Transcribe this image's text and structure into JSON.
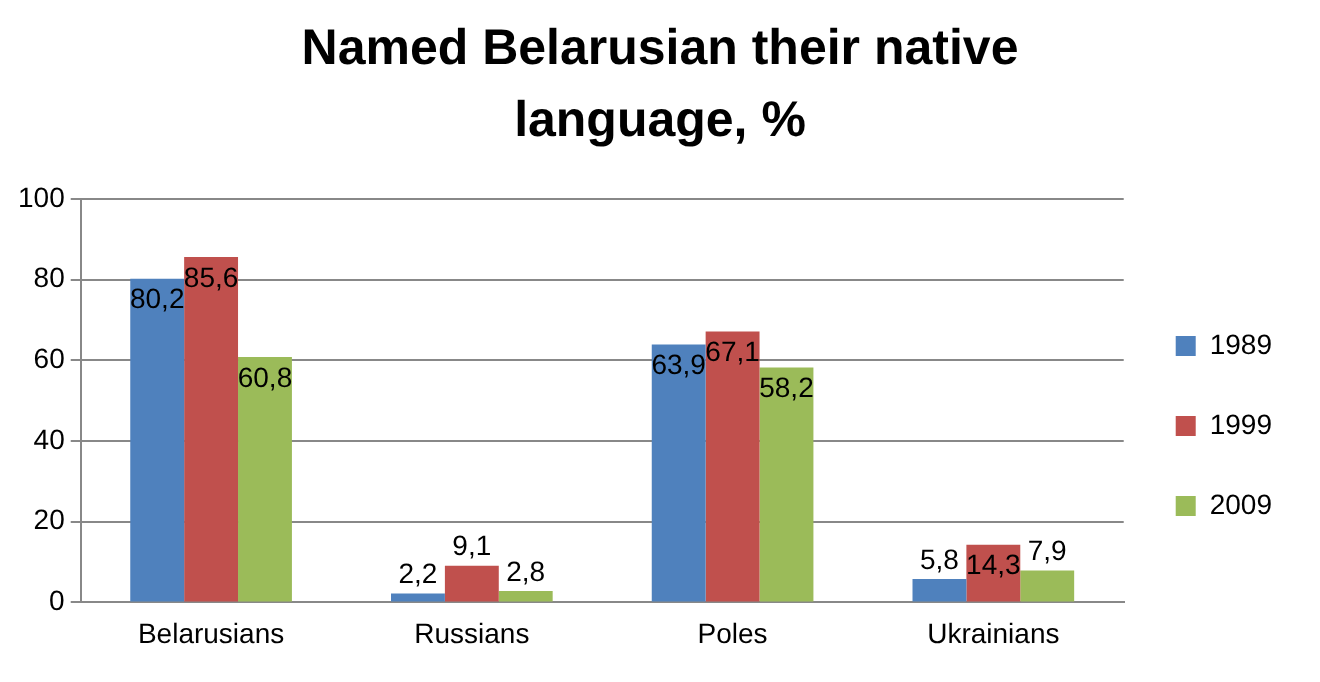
{
  "chart_data": {
    "type": "bar",
    "title": "Named Belarusian their native language, %",
    "categories": [
      "Belarusians",
      "Russians",
      "Poles",
      "Ukrainians"
    ],
    "series": [
      {
        "name": "1989",
        "color": "#4f81bd",
        "values": [
          80.2,
          2.2,
          63.9,
          5.8
        ],
        "value_labels": [
          "80,2",
          "2,2",
          "63,9",
          "5,8"
        ]
      },
      {
        "name": "1999",
        "color": "#c0504d",
        "values": [
          85.6,
          9.1,
          67.1,
          14.3
        ],
        "value_labels": [
          "85,6",
          "9,1",
          "67,1",
          "14,3"
        ]
      },
      {
        "name": "2009",
        "color": "#9bbb59",
        "values": [
          60.8,
          2.8,
          58.2,
          7.9
        ],
        "value_labels": [
          "60,8",
          "2,8",
          "58,2",
          "7,9"
        ]
      }
    ],
    "ylim": [
      0,
      100
    ],
    "yticks": [
      0,
      20,
      40,
      60,
      80,
      100
    ],
    "grid": "y",
    "legend": "right"
  }
}
